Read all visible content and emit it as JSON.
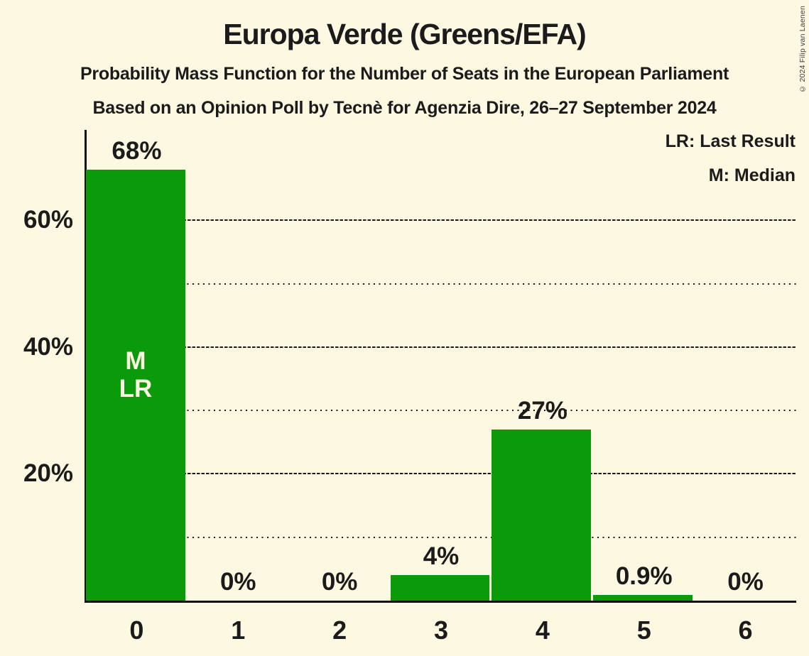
{
  "header": {
    "title": "Europa Verde (Greens/EFA)",
    "subtitle1": "Probability Mass Function for the Number of Seats in the European Parliament",
    "subtitle2": "Based on an Opinion Poll by Tecnè for Agenzia Dire, 26–27 September 2024"
  },
  "legend": {
    "lr_label": "LR: Last Result",
    "m_label": "M: Median"
  },
  "copyright": "© 2024 Filip van Laenen",
  "colors": {
    "background": "#FCF8E2",
    "bar_green": "#0A9A0A",
    "text": "#1B1B1B",
    "bar_label_cream": "#FAF6DF",
    "axis_black": "#111111"
  },
  "chart_data": {
    "type": "bar",
    "title": "Europa Verde (Greens/EFA)",
    "categories": [
      "0",
      "1",
      "2",
      "3",
      "4",
      "5",
      "6"
    ],
    "values": [
      68,
      0,
      0,
      4,
      27,
      0.9,
      0
    ],
    "value_labels": [
      "68%",
      "0%",
      "0%",
      "4%",
      "27%",
      "0.9%",
      "0%"
    ],
    "y_axis": {
      "major_ticks": [
        {
          "pct": 20,
          "label": "20%"
        },
        {
          "pct": 40,
          "label": "40%"
        },
        {
          "pct": 60,
          "label": "60%"
        }
      ],
      "minor_gridlines_pct": [
        10,
        30,
        50
      ],
      "range_pct": [
        0,
        74
      ]
    },
    "annotations": [
      {
        "seat": "0",
        "slot_index": 0,
        "lines": [
          "M",
          "LR"
        ]
      }
    ],
    "legend_entries": [
      "LR: Last Result",
      "M: Median"
    ],
    "grid": "horizontal-only",
    "legend_position": "top-right"
  }
}
